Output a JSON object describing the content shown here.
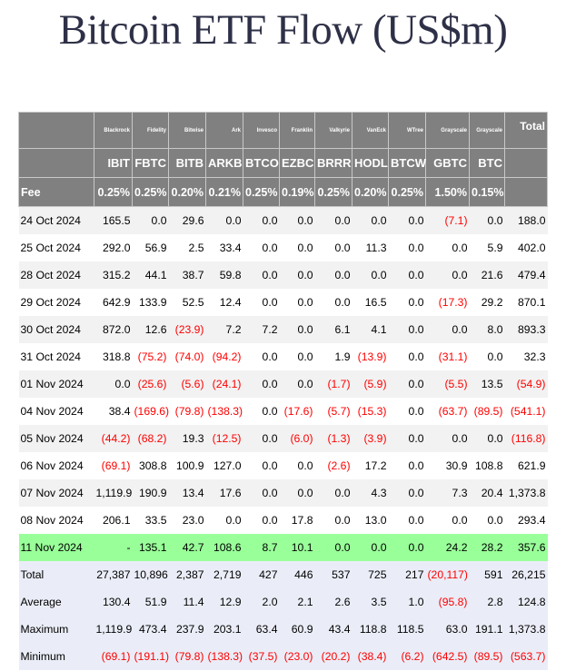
{
  "title": "Bitcoin ETF Flow (US$m)",
  "colors": {
    "header_bg": "#808080",
    "highlight_row": "#99ff99",
    "stats_bg": "#eaedf7",
    "negative": "#ff0000"
  },
  "issuers": [
    "Blackrock",
    "Fidelity",
    "Bitwise",
    "Ark",
    "Invesco",
    "Franklin",
    "Valkyrie",
    "VanEck",
    "WTree",
    "Grayscale",
    "Grayscale"
  ],
  "total_header": "Total",
  "tickers": [
    "IBIT",
    "FBTC",
    "BITB",
    "ARKB",
    "BTCO",
    "EZBC",
    "BRRR",
    "HODL",
    "BTCW",
    "GBTC",
    "BTC"
  ],
  "fee_label": "Fee",
  "fees": [
    "0.25%",
    "0.25%",
    "0.20%",
    "0.21%",
    "0.25%",
    "0.19%",
    "0.25%",
    "0.20%",
    "0.25%",
    "1.50%",
    "0.15%"
  ],
  "rows": [
    {
      "date": "24 Oct 2024",
      "values": [
        "165.5",
        "0.0",
        "29.6",
        "0.0",
        "0.0",
        "0.0",
        "0.0",
        "0.0",
        "0.0",
        "(7.1)",
        "0.0",
        "188.0"
      ]
    },
    {
      "date": "25 Oct 2024",
      "values": [
        "292.0",
        "56.9",
        "2.5",
        "33.4",
        "0.0",
        "0.0",
        "0.0",
        "11.3",
        "0.0",
        "0.0",
        "5.9",
        "402.0"
      ]
    },
    {
      "date": "28 Oct 2024",
      "values": [
        "315.2",
        "44.1",
        "38.7",
        "59.8",
        "0.0",
        "0.0",
        "0.0",
        "0.0",
        "0.0",
        "0.0",
        "21.6",
        "479.4"
      ]
    },
    {
      "date": "29 Oct 2024",
      "values": [
        "642.9",
        "133.9",
        "52.5",
        "12.4",
        "0.0",
        "0.0",
        "0.0",
        "16.5",
        "0.0",
        "(17.3)",
        "29.2",
        "870.1"
      ]
    },
    {
      "date": "30 Oct 2024",
      "values": [
        "872.0",
        "12.6",
        "(23.9)",
        "7.2",
        "7.2",
        "0.0",
        "6.1",
        "4.1",
        "0.0",
        "0.0",
        "8.0",
        "893.3"
      ]
    },
    {
      "date": "31 Oct 2024",
      "values": [
        "318.8",
        "(75.2)",
        "(74.0)",
        "(94.2)",
        "0.0",
        "0.0",
        "1.9",
        "(13.9)",
        "0.0",
        "(31.1)",
        "0.0",
        "32.3"
      ]
    },
    {
      "date": "01 Nov 2024",
      "values": [
        "0.0",
        "(25.6)",
        "(5.6)",
        "(24.1)",
        "0.0",
        "0.0",
        "(1.7)",
        "(5.9)",
        "0.0",
        "(5.5)",
        "13.5",
        "(54.9)"
      ]
    },
    {
      "date": "04 Nov 2024",
      "values": [
        "38.4",
        "(169.6)",
        "(79.8)",
        "(138.3)",
        "0.0",
        "(17.6)",
        "(5.7)",
        "(15.3)",
        "0.0",
        "(63.7)",
        "(89.5)",
        "(541.1)"
      ]
    },
    {
      "date": "05 Nov 2024",
      "values": [
        "(44.2)",
        "(68.2)",
        "19.3",
        "(12.5)",
        "0.0",
        "(6.0)",
        "(1.3)",
        "(3.9)",
        "0.0",
        "0.0",
        "0.0",
        "(116.8)"
      ]
    },
    {
      "date": "06 Nov 2024",
      "values": [
        "(69.1)",
        "308.8",
        "100.9",
        "127.0",
        "0.0",
        "0.0",
        "(2.6)",
        "17.2",
        "0.0",
        "30.9",
        "108.8",
        "621.9"
      ]
    },
    {
      "date": "07 Nov 2024",
      "values": [
        "1,119.9",
        "190.9",
        "13.4",
        "17.6",
        "0.0",
        "0.0",
        "0.0",
        "4.3",
        "0.0",
        "7.3",
        "20.4",
        "1,373.8"
      ]
    },
    {
      "date": "08 Nov 2024",
      "values": [
        "206.1",
        "33.5",
        "23.0",
        "0.0",
        "0.0",
        "17.8",
        "0.0",
        "13.0",
        "0.0",
        "0.0",
        "0.0",
        "293.4"
      ]
    },
    {
      "date": "11 Nov 2024",
      "highlight": true,
      "values": [
        "-",
        "135.1",
        "42.7",
        "108.6",
        "8.7",
        "10.1",
        "0.0",
        "0.0",
        "0.0",
        "24.2",
        "28.2",
        "357.6"
      ]
    }
  ],
  "stats": [
    {
      "label": "Total",
      "values": [
        "27,387",
        "10,896",
        "2,387",
        "2,719",
        "427",
        "446",
        "537",
        "725",
        "217",
        "(20,117)",
        "591",
        "26,215"
      ]
    },
    {
      "label": "Average",
      "values": [
        "130.4",
        "51.9",
        "11.4",
        "12.9",
        "2.0",
        "2.1",
        "2.6",
        "3.5",
        "1.0",
        "(95.8)",
        "2.8",
        "124.8"
      ]
    },
    {
      "label": "Maximum",
      "values": [
        "1,119.9",
        "473.4",
        "237.9",
        "203.1",
        "63.4",
        "60.9",
        "43.4",
        "118.8",
        "118.5",
        "63.0",
        "191.1",
        "1,373.8"
      ]
    },
    {
      "label": "Minimum",
      "values": [
        "(69.1)",
        "(191.1)",
        "(79.8)",
        "(138.3)",
        "(37.5)",
        "(23.0)",
        "(20.2)",
        "(38.4)",
        "(6.2)",
        "(642.5)",
        "(89.5)",
        "(563.7)"
      ]
    }
  ]
}
